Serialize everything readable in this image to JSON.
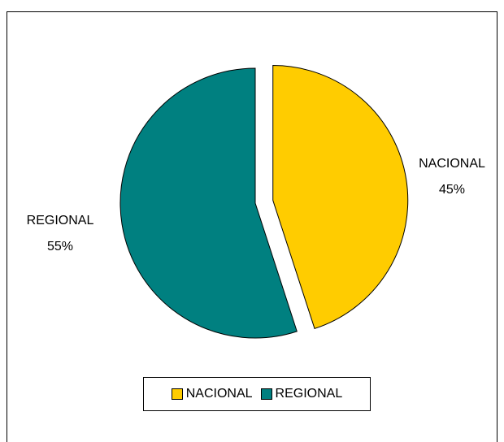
{
  "chart_data": {
    "type": "pie",
    "title": "",
    "slices": [
      {
        "name": "NACIONAL",
        "value": 45,
        "label": "45%",
        "color": "#FFCC00",
        "exploded": true
      },
      {
        "name": "REGIONAL",
        "value": 55,
        "label": "55%",
        "color": "#008080",
        "exploded": false
      }
    ],
    "legend": {
      "placement": "bottom",
      "entries": [
        {
          "name": "NACIONAL",
          "color": "#FFCC00"
        },
        {
          "name": "REGIONAL",
          "color": "#008080"
        }
      ]
    }
  }
}
